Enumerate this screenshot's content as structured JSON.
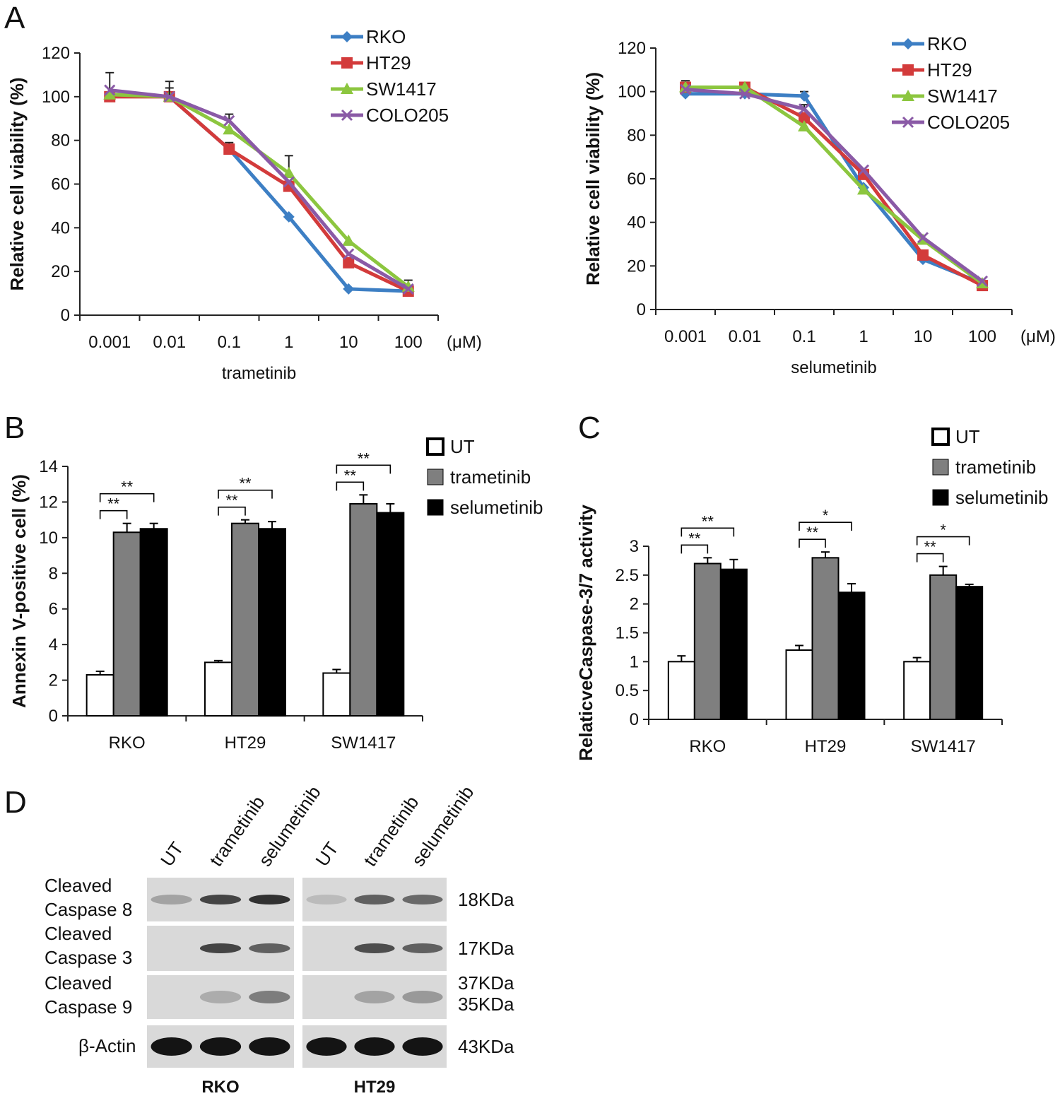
{
  "colors": {
    "RKO": "#3d7fc4",
    "HT29": "#d33b3b",
    "SW1417": "#8cc63f",
    "COLO205": "#8a5aa6",
    "UT": "#ffffff",
    "trametinib": "#7f7f7f",
    "selumetinib": "#000000"
  },
  "panels": {
    "A": "A",
    "B": "B",
    "C": "C",
    "D": "D"
  },
  "chart_data": [
    {
      "id": "A-left",
      "type": "line",
      "categories": [
        "0.001",
        "0.01",
        "0.1",
        "1",
        "10",
        "100"
      ],
      "unit_label": "(μM)",
      "xlabel": "trametinib",
      "ylabel": "Relative cell viability (%)",
      "ylim": [
        0,
        120
      ],
      "yticks": [
        "0",
        "20",
        "40",
        "60",
        "80",
        "100",
        "120"
      ],
      "series": [
        {
          "name": "RKO",
          "marker": "diamond",
          "values": [
            101,
            100,
            76,
            45,
            12,
            11
          ],
          "err": [
            0,
            0,
            0,
            0,
            0,
            0
          ]
        },
        {
          "name": "HT29",
          "marker": "square",
          "values": [
            100,
            100,
            76,
            59,
            24,
            11
          ],
          "err": [
            0,
            4,
            3,
            0,
            0,
            0
          ]
        },
        {
          "name": "SW1417",
          "marker": "triangle",
          "values": [
            101,
            100,
            85,
            65,
            34,
            13
          ],
          "err": [
            0,
            0,
            0,
            8,
            0,
            3
          ]
        },
        {
          "name": "COLO205",
          "marker": "x",
          "values": [
            103,
            100,
            89,
            61,
            28,
            12
          ],
          "err": [
            8,
            7,
            3,
            0,
            0,
            0
          ]
        }
      ]
    },
    {
      "id": "A-right",
      "type": "line",
      "categories": [
        "0.001",
        "0.01",
        "0.1",
        "1",
        "10",
        "100"
      ],
      "unit_label": "(μM)",
      "xlabel": "selumetinib",
      "ylabel": "Relative cell viability (%)",
      "ylim": [
        0,
        120
      ],
      "yticks": [
        "0",
        "20",
        "40",
        "60",
        "80",
        "100",
        "120"
      ],
      "series": [
        {
          "name": "RKO",
          "marker": "diamond",
          "values": [
            99,
            99,
            98,
            56,
            23,
            12
          ],
          "err": [
            0,
            0,
            2,
            0,
            0,
            0
          ]
        },
        {
          "name": "HT29",
          "marker": "square",
          "values": [
            102,
            102,
            88,
            62,
            25,
            11
          ],
          "err": [
            3,
            2,
            0,
            0,
            0,
            0
          ]
        },
        {
          "name": "SW1417",
          "marker": "triangle",
          "values": [
            102,
            102,
            84,
            55,
            32,
            12
          ],
          "err": [
            0,
            0,
            0,
            0,
            0,
            0
          ]
        },
        {
          "name": "COLO205",
          "marker": "x",
          "values": [
            101,
            99,
            92,
            64,
            33,
            13
          ],
          "err": [
            0,
            0,
            2,
            0,
            0,
            0
          ]
        }
      ]
    },
    {
      "id": "B",
      "type": "bar",
      "categories": [
        "RKO",
        "HT29",
        "SW1417"
      ],
      "ylabel": "Annexin V-positive cell (%)",
      "ylim": [
        0,
        14
      ],
      "yticks": [
        "0",
        "2",
        "4",
        "6",
        "8",
        "10",
        "12",
        "14"
      ],
      "series": [
        {
          "name": "UT",
          "values": [
            2.3,
            3.0,
            2.4
          ],
          "err": [
            0.2,
            0.1,
            0.2
          ]
        },
        {
          "name": "trametinib",
          "values": [
            10.3,
            10.8,
            11.9
          ],
          "err": [
            0.5,
            0.2,
            0.5
          ]
        },
        {
          "name": "selumetinib",
          "values": [
            10.5,
            10.5,
            11.4
          ],
          "err": [
            0.3,
            0.4,
            0.5
          ]
        }
      ],
      "significance": [
        {
          "group": 0,
          "upper": "**",
          "lower": "**"
        },
        {
          "group": 1,
          "upper": "**",
          "lower": "**"
        },
        {
          "group": 2,
          "upper": "**",
          "lower": "**"
        }
      ]
    },
    {
      "id": "C",
      "type": "bar",
      "categories": [
        "RKO",
        "HT29",
        "SW1417"
      ],
      "ylabel": "RelaticveCaspase-3/7 activity",
      "ylim": [
        0,
        3
      ],
      "yticks": [
        "0",
        "0.5",
        "1",
        "1.5",
        "2",
        "2.5",
        "3"
      ],
      "series": [
        {
          "name": "UT",
          "values": [
            1.0,
            1.2,
            1.0
          ],
          "err": [
            0.1,
            0.08,
            0.07
          ]
        },
        {
          "name": "trametinib",
          "values": [
            2.7,
            2.8,
            2.5
          ],
          "err": [
            0.1,
            0.1,
            0.15
          ]
        },
        {
          "name": "selumetinib",
          "values": [
            2.6,
            2.2,
            2.3
          ],
          "err": [
            0.17,
            0.15,
            0.04
          ]
        }
      ],
      "significance": [
        {
          "group": 0,
          "upper": "**",
          "lower": "**"
        },
        {
          "group": 1,
          "upper": "*",
          "lower": "**"
        },
        {
          "group": 2,
          "upper": "*",
          "lower": "**"
        }
      ]
    }
  ],
  "blot": {
    "lanes": [
      "UT",
      "trametinib",
      "selumetinib"
    ],
    "cell_lines": [
      "RKO",
      "HT29"
    ],
    "rows": [
      {
        "label1": "Cleaved",
        "label2": "Caspase 8",
        "sizes": [
          "18KDa"
        ]
      },
      {
        "label1": "Cleaved",
        "label2": "Caspase 3",
        "sizes": [
          "17KDa"
        ]
      },
      {
        "label1": "Cleaved",
        "label2": "Caspase 9",
        "sizes": [
          "37KDa",
          "35KDa"
        ]
      },
      {
        "label1": "β-Actin",
        "label2": "",
        "sizes": [
          "43KDa"
        ]
      }
    ],
    "band_intensity": [
      [
        [
          0.25,
          0.75,
          0.85
        ],
        [
          0.12,
          0.6,
          0.55
        ]
      ],
      [
        [
          0.0,
          0.75,
          0.6
        ],
        [
          0.0,
          0.7,
          0.6
        ]
      ],
      [
        [
          0.0,
          0.2,
          0.45
        ],
        [
          0.0,
          0.25,
          0.3
        ]
      ],
      [
        [
          1.0,
          1.0,
          1.0
        ],
        [
          1.0,
          1.0,
          1.0
        ]
      ]
    ]
  }
}
